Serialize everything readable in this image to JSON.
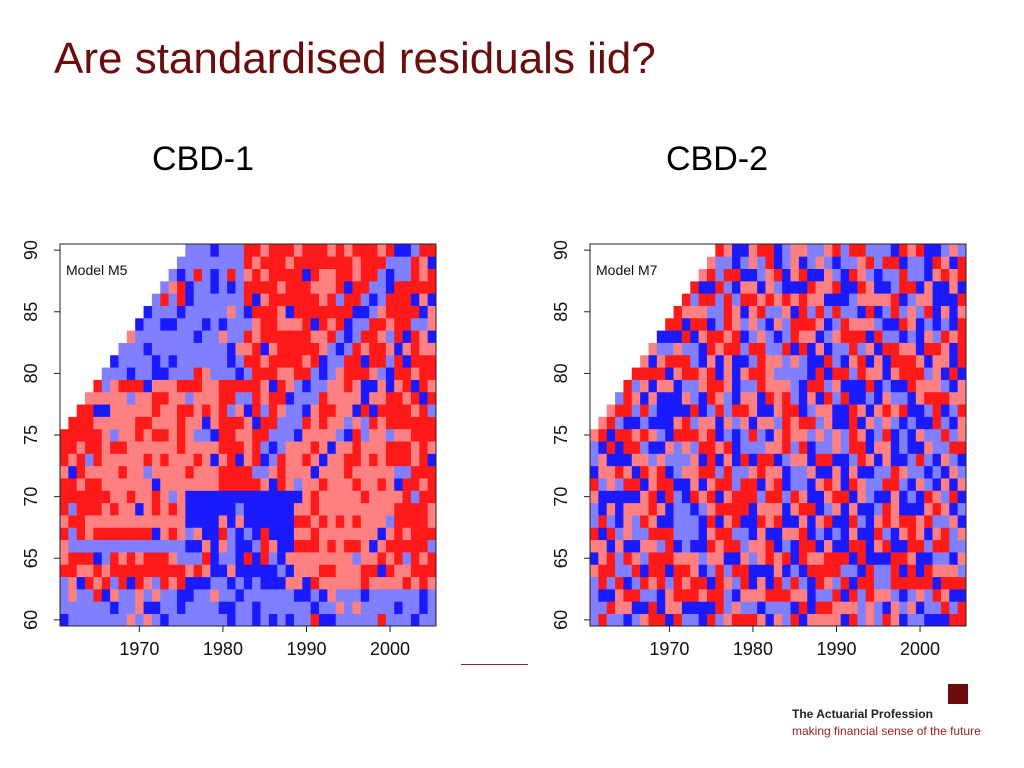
{
  "slide": {
    "title": "Are standardised residuals iid?"
  },
  "brand": {
    "name": "The Actuarial Profession",
    "tagline": "making financial sense of the future"
  },
  "colors": {
    "title": "#6b0d0d",
    "strong_positive": "#ff1a1a",
    "weak_positive": "#ff8080",
    "weak_negative": "#7f7fff",
    "strong_negative": "#1a1aff",
    "missing": "#ffffff"
  },
  "chart_data": [
    {
      "type": "heatmap",
      "caption": "CBD-1",
      "title": "",
      "annotation": "Model M5",
      "xlabel": "",
      "ylabel": "",
      "x_ticks": [
        1970,
        1980,
        1990,
        2000
      ],
      "y_ticks": [
        60,
        65,
        70,
        75,
        80,
        85,
        90
      ],
      "xlim": [
        1961,
        2005
      ],
      "ylim": [
        60,
        90
      ],
      "pattern": "clustered",
      "data_region": "cohort year of birth (year - age) >= 1885 only",
      "description": "residuals strongly clustered: large red patches and blue bands, not iid"
    },
    {
      "type": "heatmap",
      "caption": "CBD-2",
      "title": "",
      "annotation": "Model M7",
      "xlabel": "",
      "ylabel": "",
      "x_ticks": [
        1970,
        1980,
        1990,
        2000
      ],
      "y_ticks": [
        60,
        65,
        70,
        75,
        80,
        85,
        90
      ],
      "xlim": [
        1961,
        2005
      ],
      "ylim": [
        60,
        90
      ],
      "pattern": "random",
      "data_region": "cohort year of birth (year - age) >= 1885 only",
      "description": "residuals appear randomly scattered (closer to iid)"
    }
  ]
}
